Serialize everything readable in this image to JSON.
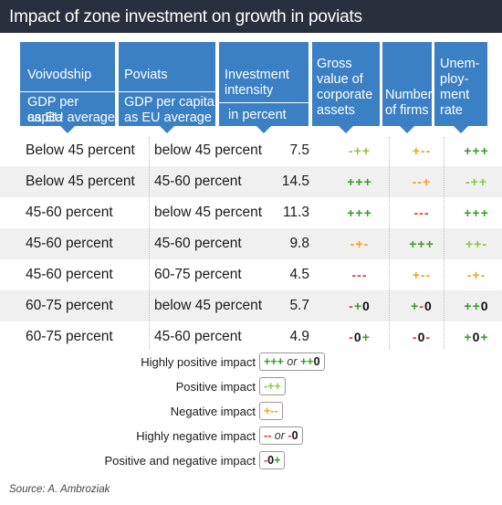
{
  "title": "Impact of zone investment on growth in poviats",
  "headers": {
    "voivodship": {
      "t1": "Voivodship",
      "t2": "GDP per capita",
      "t3": "as EU average"
    },
    "poviats": {
      "t1": "Poviats",
      "t2": "GDP per capita",
      "t3": "as EU average"
    },
    "investment": {
      "t1": "Investment",
      "t1b": "intensity",
      "t2": "in percent"
    },
    "gross": [
      "Gross",
      "value of",
      "corporate",
      "assets"
    ],
    "firms": [
      "Number",
      "of firms"
    ],
    "unemp": [
      "Unem-",
      "ploy-",
      "ment",
      "rate"
    ]
  },
  "rows": [
    {
      "voiv": "Below 45 percent",
      "pov": "below 45 percent",
      "inv": "7.5",
      "gross": [
        [
          "-",
          "lg"
        ],
        [
          "++",
          "lg"
        ]
      ],
      "firms": [
        [
          "+",
          "o"
        ],
        [
          "--",
          "o"
        ]
      ],
      "unemp": [
        [
          "+++",
          "g"
        ]
      ]
    },
    {
      "voiv": "Below 45 percent",
      "pov": "45-60 percent",
      "inv": "14.5",
      "gross": [
        [
          "+++",
          "g"
        ]
      ],
      "firms": [
        [
          "--+",
          "o"
        ]
      ],
      "unemp": [
        [
          "-++",
          "lg"
        ]
      ]
    },
    {
      "voiv": "45-60 percent",
      "pov": "below 45 percent",
      "inv": "11.3",
      "gross": [
        [
          "+++",
          "g"
        ]
      ],
      "firms": [
        [
          "---",
          "r"
        ]
      ],
      "unemp": [
        [
          "+++",
          "g"
        ]
      ]
    },
    {
      "voiv": "45-60 percent",
      "pov": "45-60 percent",
      "inv": "9.8",
      "gross": [
        [
          "-+-",
          "o"
        ]
      ],
      "firms": [
        [
          "+++",
          "g"
        ]
      ],
      "unemp": [
        [
          "++-",
          "lg"
        ]
      ]
    },
    {
      "voiv": "45-60 percent",
      "pov": "60-75 percent",
      "inv": "4.5",
      "gross": [
        [
          "---",
          "r"
        ]
      ],
      "firms": [
        [
          "+--",
          "o"
        ]
      ],
      "unemp": [
        [
          "-+-",
          "o"
        ]
      ]
    },
    {
      "voiv": "60-75 percent",
      "pov": "below 45 percent",
      "inv": "5.7",
      "gross": [
        [
          "-",
          "r"
        ],
        [
          "+",
          "g"
        ],
        [
          "0",
          "k"
        ]
      ],
      "firms": [
        [
          "+",
          "g"
        ],
        [
          "-",
          "r"
        ],
        [
          "0",
          "k"
        ]
      ],
      "unemp": [
        [
          "++",
          "g"
        ],
        [
          "0",
          "k"
        ]
      ]
    },
    {
      "voiv": "60-75 percent",
      "pov": "45-60 percent",
      "inv": "4.9",
      "gross": [
        [
          "-",
          "r"
        ],
        [
          "0",
          "k"
        ],
        [
          "+",
          "g"
        ]
      ],
      "firms": [
        [
          "-",
          "r"
        ],
        [
          "0",
          "k"
        ],
        [
          "-",
          "r"
        ]
      ],
      "unemp": [
        [
          "+",
          "g"
        ],
        [
          "0",
          "k"
        ],
        [
          "+",
          "g"
        ]
      ]
    }
  ],
  "legend": [
    {
      "label": "Highly positive impact",
      "parts": [
        [
          "+++",
          "g"
        ],
        [
          " or ",
          "or"
        ],
        [
          "++",
          "g"
        ],
        [
          "0",
          "k"
        ]
      ]
    },
    {
      "label": "Positive impact",
      "parts": [
        [
          "-++",
          "lg"
        ]
      ]
    },
    {
      "label": "Negative impact",
      "parts": [
        [
          "+--",
          "o"
        ]
      ]
    },
    {
      "label": "Highly negative impact",
      "parts": [
        [
          "--",
          "r"
        ],
        [
          " or ",
          "or"
        ],
        [
          "-",
          "r"
        ],
        [
          "0",
          "k"
        ]
      ]
    },
    {
      "label": "Positive and negative impact",
      "parts": [
        [
          "-",
          "r"
        ],
        [
          "0",
          "k"
        ],
        [
          "+",
          "g"
        ]
      ]
    }
  ],
  "source": "Source: A. Ambroziak",
  "colors": {
    "header": "#3b7fc4",
    "title_bar": "#2a2f3d",
    "dark_green": "#3a9a2a",
    "light_green": "#8cc63f",
    "orange": "#f5a01a",
    "red": "#e03a2a"
  }
}
